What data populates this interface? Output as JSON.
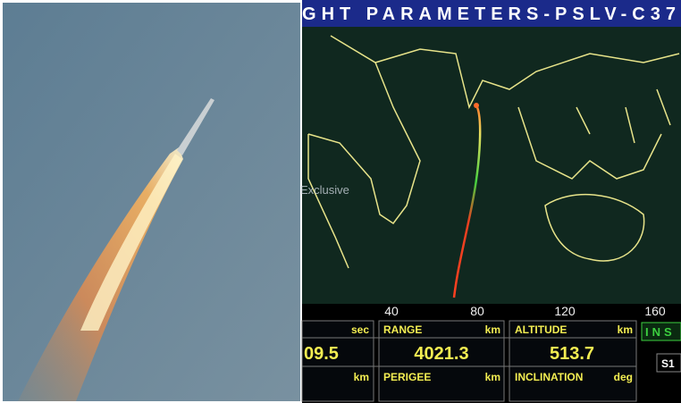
{
  "header": {
    "title": "GHT PARAMETERS-PSLV-C37"
  },
  "video": {
    "watermark": "Exclusive"
  },
  "map": {
    "longitude_labels": [
      "40",
      "80",
      "120",
      "160"
    ]
  },
  "panels": [
    {
      "top_unit": "sec",
      "value": "09.5",
      "bottom_unit": "km"
    },
    {
      "top_label": "RANGE",
      "top_unit": "km",
      "value": "4021.3",
      "bottom_label": "PERIGEE",
      "bottom_unit": "km"
    },
    {
      "top_label": "ALTITUDE",
      "top_unit": "km",
      "value": "513.7",
      "bottom_label": "INCLINATION",
      "bottom_unit": "deg"
    },
    {
      "status": "INS",
      "stage": "S1"
    }
  ]
}
